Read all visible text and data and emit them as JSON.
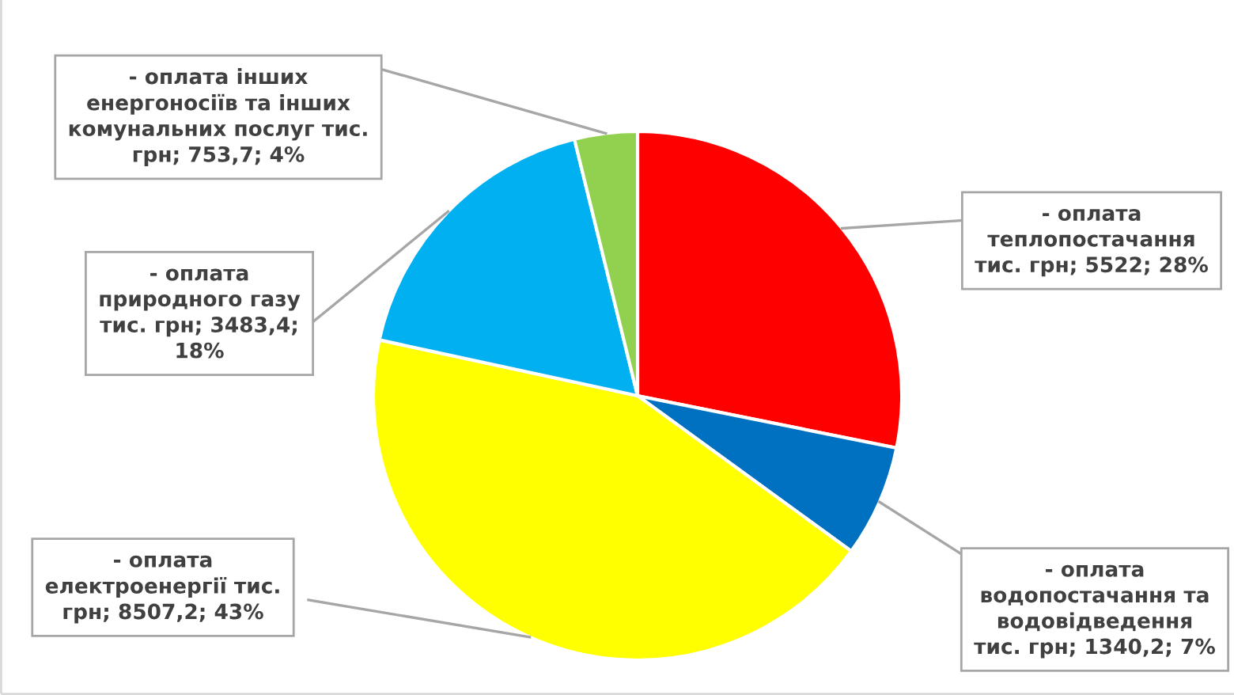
{
  "chart_data": {
    "type": "pie",
    "categories": [
      "- оплата\nтеплопостачання\nтис. грн",
      "- оплата\nводопостачання та\nводовідведення\nтис. грн",
      "- оплата\nелектроенергії тис.\nгрн",
      "- оплата\nприродного газу\nтис. грн",
      "- оплата інших\nенергоносіїв та інших\nкомунальних послуг тис.\nгрн"
    ],
    "values": [
      5522,
      1340.2,
      8507.2,
      3483.4,
      753.7
    ],
    "value_labels": [
      "5522; 28%",
      "1340,2; 7%",
      "8507,2; 43%",
      "3483,4;\n18%",
      "753,7; 4%"
    ],
    "colors": [
      "#ff0000",
      "#0070c0",
      "#ffff00",
      "#00b0f0",
      "#92d050"
    ]
  }
}
